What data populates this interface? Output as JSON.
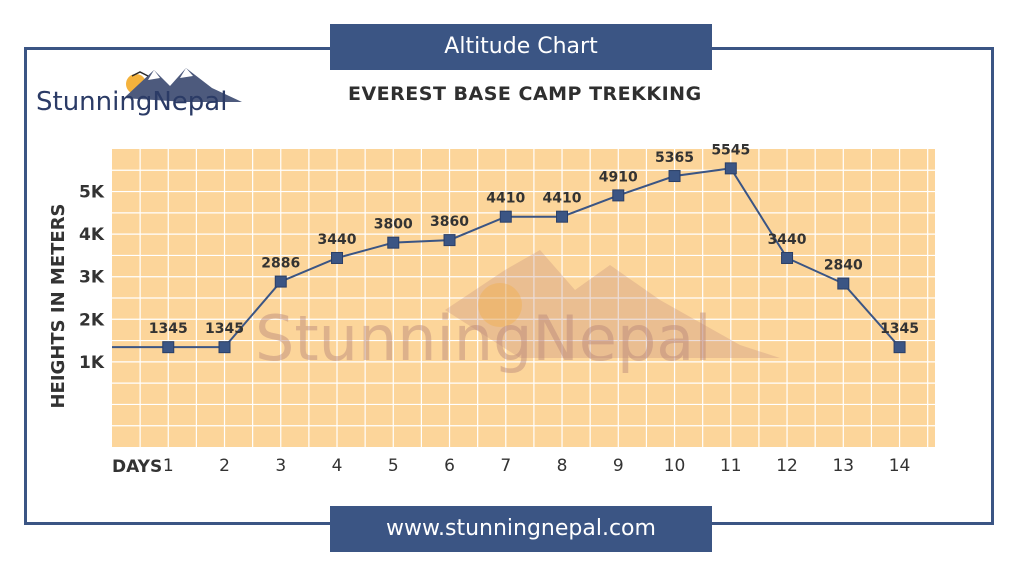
{
  "header": {
    "title": "Altitude Chart",
    "subtitle": "EVEREST BASE CAMP TREKKING"
  },
  "logo": {
    "text": "StunningNepal"
  },
  "footer": {
    "url": "www.stunningnepal.com"
  },
  "colors": {
    "frame": "#3b5584",
    "plot_bg": "#fcd59a",
    "grid": "#ffffff",
    "line": "#3b5584",
    "marker": "#3b5584",
    "text": "#333333"
  },
  "chart_data": {
    "type": "line",
    "title": "",
    "xlabel": "DAYS",
    "ylabel": "HEIGHTS IN METERS",
    "x": [
      1,
      2,
      3,
      4,
      5,
      6,
      7,
      8,
      9,
      10,
      11,
      12,
      13,
      14
    ],
    "series": [
      {
        "values": [
          1345,
          1345,
          2886,
          3440,
          3800,
          3860,
          4410,
          4410,
          4910,
          5365,
          5545,
          3440,
          2840,
          1345
        ]
      }
    ],
    "data_labels": [
      "1345",
      "1345",
      "2886",
      "3440",
      "3800",
      "3860",
      "4410",
      "4410",
      "4910",
      "5365",
      "5545",
      "3440",
      "2840",
      "1345"
    ],
    "y_ticks": [
      1000,
      2000,
      3000,
      4000,
      5000
    ],
    "y_tick_labels": [
      "1K",
      "2K",
      "3K",
      "4K",
      "5K"
    ],
    "grid": true,
    "markers": "square"
  }
}
